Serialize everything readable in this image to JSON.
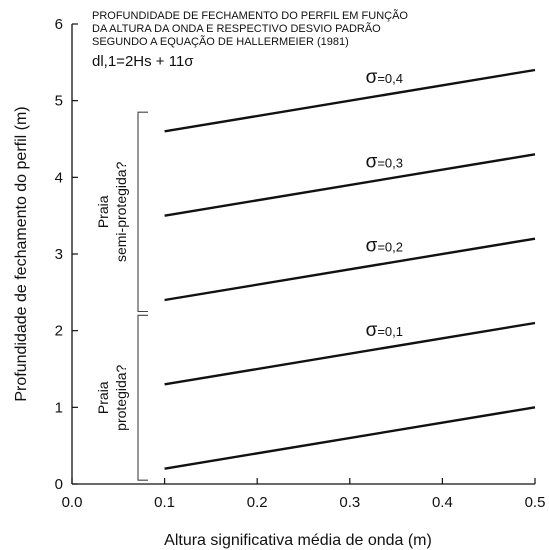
{
  "chart_data": {
    "type": "line",
    "xlabel": "Altura significativa média de onda (m)",
    "ylabel": "Profundidade de fechamento do perfil (m)",
    "xlim": [
      0.0,
      0.5
    ],
    "ylim": [
      0,
      6
    ],
    "x_ticks": [
      "0.0",
      "0.1",
      "0.2",
      "0.3",
      "0.4",
      "0.5"
    ],
    "y_ticks": [
      "0",
      "1",
      "2",
      "3",
      "4",
      "5",
      "6"
    ],
    "grid": false,
    "annotation_lines": [
      "PROFUNDIDADE DE FECHAMENTO DO PERFIL EM FUNÇÃO",
      "DA ALTURA DA ONDA E RESPECTIVO  DESVIO PADRÃO",
      "SEGUNDO A EQUAÇÃO DE HALLERMEIER (1981)"
    ],
    "formula": "dl,1=2Hs + 11σ",
    "series": [
      {
        "label_symbol": "σ",
        "label_value": "=0,4",
        "x": [
          0.1,
          0.5
        ],
        "y": [
          4.6,
          5.4
        ]
      },
      {
        "label_symbol": "σ",
        "label_value": "=0,3",
        "x": [
          0.1,
          0.5
        ],
        "y": [
          3.5,
          4.3
        ]
      },
      {
        "label_symbol": "σ",
        "label_value": "=0,2",
        "x": [
          0.1,
          0.5
        ],
        "y": [
          2.4,
          3.2
        ]
      },
      {
        "label_symbol": "σ",
        "label_value": "=0,1",
        "x": [
          0.1,
          0.5
        ],
        "y": [
          1.3,
          2.1
        ]
      },
      {
        "x": [
          0.1,
          0.5
        ],
        "y": [
          0.2,
          1.0
        ]
      }
    ],
    "brackets": [
      {
        "lines": [
          "Praia",
          "semi-protegida?"
        ],
        "y_range": [
          2.25,
          4.85
        ]
      },
      {
        "lines": [
          "Praia",
          "protegida?"
        ],
        "y_range": [
          0.05,
          2.2
        ]
      }
    ],
    "colors": {
      "line": "#111111",
      "axis": "#111111"
    }
  }
}
